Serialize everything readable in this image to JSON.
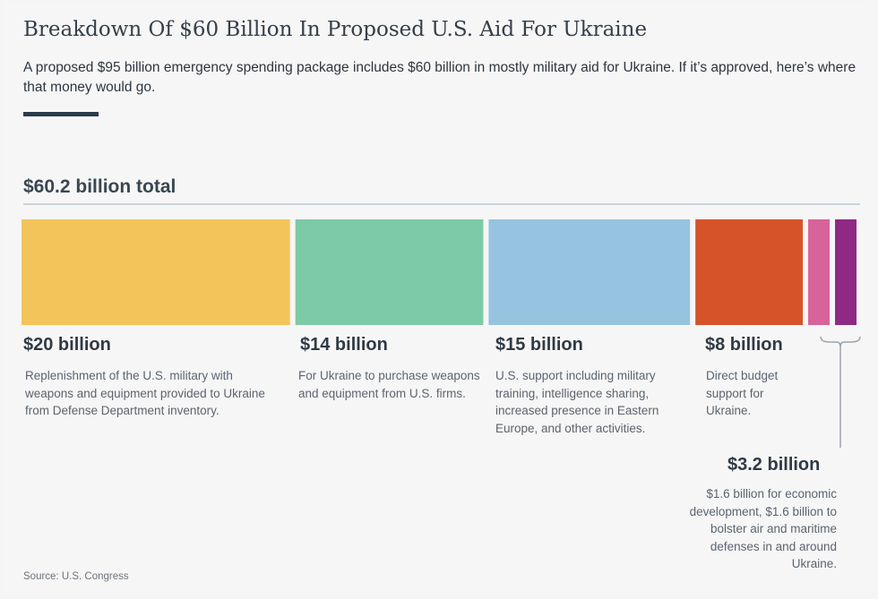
{
  "header": {
    "title": "Breakdown Of $60 Billion In Proposed U.S. Aid For Ukraine",
    "subtitle": "A proposed $95 billion emergency spending package includes $60 billion in mostly military aid for Ukraine. If it’s approved, here’s where that money would go.",
    "total_label": "$60.2 billion total"
  },
  "chart_data": {
    "type": "bar",
    "orientation": "stacked-horizontal",
    "total": 60.2,
    "categories": [
      "Replenishment of the U.S. military with weapons and equipment provided to Ukraine from Defense Department inventory.",
      "For Ukraine to purchase weapons and equipment from U.S. firms.",
      "U.S. support including military training, intelligence sharing, increased presence in Eastern Europe, and other activities.",
      "Direct budget support for Ukraine.",
      "$1.6 billion for economic development",
      "$1.6 billion to bolster air and maritime defenses in and around Ukraine"
    ],
    "values": [
      20,
      14,
      15,
      8,
      1.6,
      1.6
    ],
    "colors": [
      "#f2c45a",
      "#7ccba6",
      "#96c3e0",
      "#d6532a",
      "#d8629a",
      "#8e2a83"
    ],
    "amount_labels": [
      "$20 billion",
      "$14 billion",
      "$15 billion",
      "$8 billion",
      "$3.2 billion"
    ],
    "descriptions": [
      "Replenishment of the U.S. military with weapons and equipment provided to Ukraine from Defense Department inventory.",
      "For Ukraine to purchase weapons and equipment from U.S. firms.",
      "U.S. support including military training, intelligence sharing, increased presence in Eastern Europe, and other activities.",
      "Direct budget support for Ukraine.",
      "$1.6 billion for economic development, $1.6 billion to bolster air and maritime defenses in and around Ukraine."
    ]
  },
  "footer": {
    "source": "Source: U.S. Congress"
  }
}
